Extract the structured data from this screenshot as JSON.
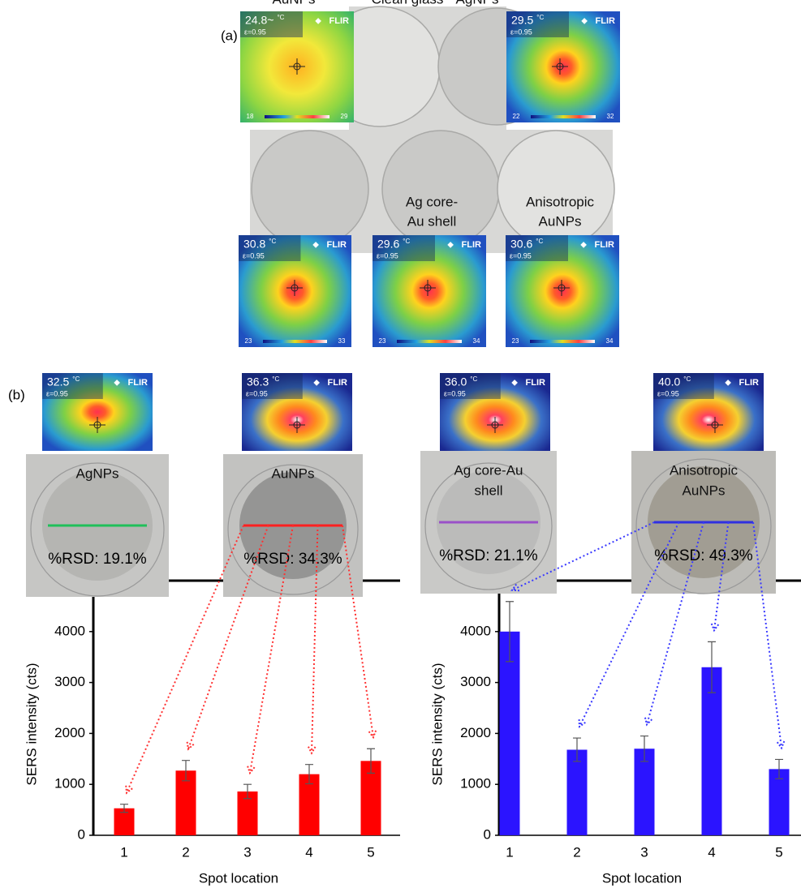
{
  "panel_a": {
    "label": "(a)",
    "thermal": [
      {
        "temp": "24.8~",
        "unit": "°C",
        "emissivity": "ε=0.95",
        "brand": "FLIR",
        "scale": [
          18,
          29
        ]
      },
      {
        "temp": "29.5",
        "unit": "°C",
        "emissivity": "ε=0.95",
        "brand": "FLIR",
        "scale": [
          22,
          32
        ]
      },
      {
        "temp": "30.8",
        "unit": "°C",
        "emissivity": "ε=0.95",
        "brand": "FLIR",
        "scale": [
          23,
          33
        ]
      },
      {
        "temp": "29.6",
        "unit": "°C",
        "emissivity": "ε=0.95",
        "brand": "FLIR",
        "scale": [
          23,
          34
        ]
      },
      {
        "temp": "30.6",
        "unit": "°C",
        "emissivity": "ε=0.95",
        "brand": "FLIR",
        "scale": [
          23,
          34
        ]
      }
    ],
    "samples": [
      [
        "Clean glass"
      ],
      [
        "AgNPs"
      ],
      [
        "AuNPs"
      ],
      [
        "Ag core-",
        "Au shell"
      ],
      [
        "Anisotropic",
        "AuNPs"
      ]
    ]
  },
  "panel_b": {
    "label": "(b)",
    "thermal": [
      {
        "temp": "32.5",
        "unit": "°C",
        "emissivity": "ε=0.95",
        "brand": "FLIR"
      },
      {
        "temp": "36.3",
        "unit": "°C",
        "emissivity": "ε=0.95",
        "brand": "FLIR"
      },
      {
        "temp": "36.0",
        "unit": "°C",
        "emissivity": "ε=0.95",
        "brand": "FLIR"
      },
      {
        "temp": "40.0",
        "unit": "°C",
        "emissivity": "ε=0.95",
        "brand": "FLIR"
      }
    ],
    "samples": [
      {
        "name": [
          "AgNPs"
        ],
        "rsd": "%RSD:  19.1%"
      },
      {
        "name": [
          "AuNPs"
        ],
        "rsd": "%RSD:  34.3%"
      },
      {
        "name": [
          "Ag core-Au",
          "shell"
        ],
        "rsd": "%RSD:  21.1%"
      },
      {
        "name": [
          "Anisotropic",
          "AuNPs"
        ],
        "rsd": "%RSD:  49.3%"
      }
    ]
  },
  "chart_data": [
    {
      "type": "bar",
      "categories": [
        "1",
        "2",
        "3",
        "4",
        "5"
      ],
      "values": [
        530,
        1270,
        860,
        1200,
        1460
      ],
      "errors": [
        80,
        200,
        140,
        190,
        240
      ],
      "color": "#ff0000",
      "ylim": [
        0,
        5000
      ],
      "yticks": [
        0,
        1000,
        2000,
        3000,
        4000
      ],
      "x_label": "Spot location",
      "y_label": "SERS intensity (cts)"
    },
    {
      "type": "bar",
      "categories": [
        "1",
        "2",
        "3",
        "4",
        "5"
      ],
      "values": [
        4000,
        1680,
        1700,
        3300,
        1300
      ],
      "errors": [
        590,
        230,
        250,
        500,
        190
      ],
      "color": "#2b14ff",
      "ylim": [
        0,
        5000
      ],
      "yticks": [
        0,
        1000,
        2000,
        3000,
        4000
      ],
      "x_label": "Spot location",
      "y_label": "SERS intensity (cts)"
    }
  ]
}
